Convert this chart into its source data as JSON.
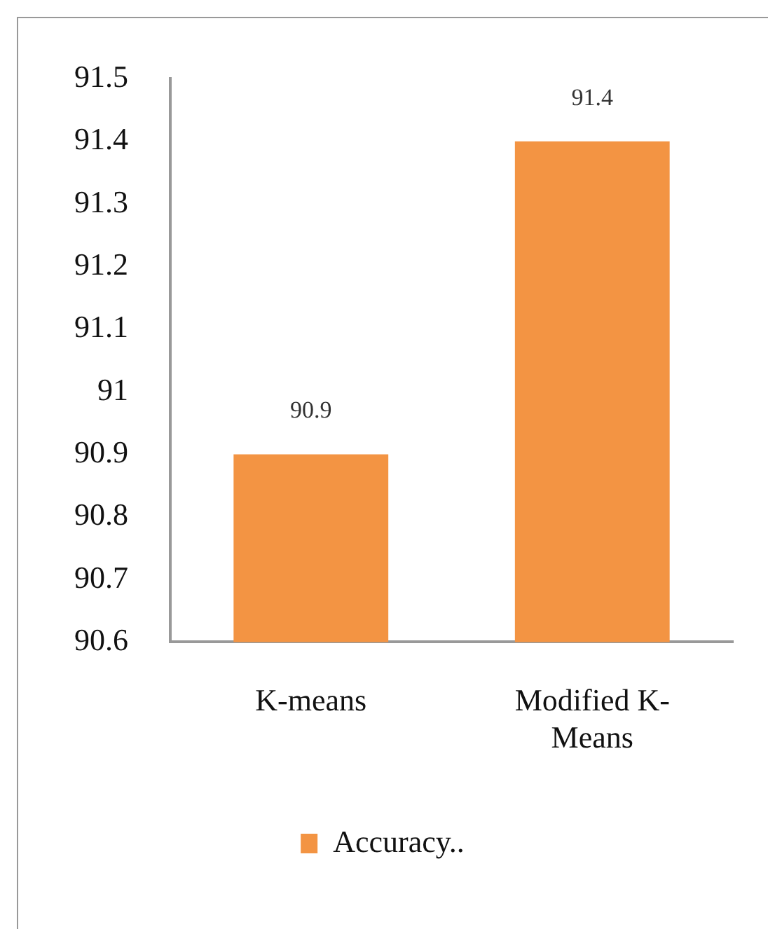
{
  "chart_data": {
    "type": "bar",
    "categories": [
      "K-means",
      "Modified K-Means"
    ],
    "series": [
      {
        "name": "Accuracy..",
        "color": "#f39443",
        "values": [
          90.9,
          91.4
        ]
      }
    ],
    "ylim": [
      90.6,
      91.5
    ],
    "yticks": [
      90.6,
      90.7,
      90.8,
      90.9,
      91,
      91.1,
      91.2,
      91.3,
      91.4,
      91.5
    ],
    "data_labels": true,
    "legend": "bottom",
    "grid": false
  }
}
